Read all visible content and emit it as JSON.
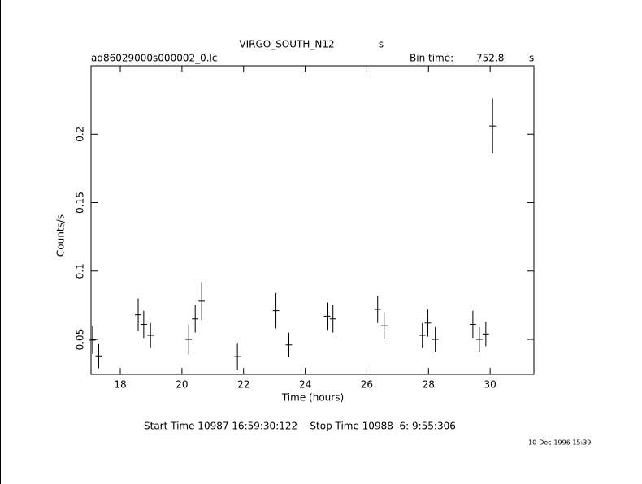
{
  "chart_data": {
    "type": "errorbar",
    "title": "VIRGO_SOUTH_N12",
    "title_unit": "s",
    "file": "ad86029000s000002_0.lc",
    "bin_time_label": "Bin time:",
    "bin_time": 752.8,
    "bin_time_unit": "s",
    "xlabel": "Time (hours)",
    "ylabel": "Counts/s",
    "footer": "Start Time 10987 16:59:30:122    Stop Time 10988  6: 9:55:306",
    "date": "10-Dec-1996 15:39",
    "color": "#000000",
    "x": [
      17.1,
      17.3,
      18.58,
      18.76,
      18.98,
      20.22,
      20.43,
      20.64,
      21.8,
      23.05,
      23.47,
      24.71,
      24.9,
      26.35,
      26.56,
      27.8,
      27.98,
      28.22,
      29.44,
      29.65,
      29.86,
      30.08
    ],
    "y": [
      0.0495,
      0.038,
      0.068,
      0.061,
      0.053,
      0.05,
      0.065,
      0.078,
      0.0375,
      0.071,
      0.046,
      0.067,
      0.065,
      0.072,
      0.06,
      0.053,
      0.062,
      0.05,
      0.061,
      0.05,
      0.054,
      0.206
    ],
    "yerr": [
      0.01,
      0.009,
      0.012,
      0.01,
      0.009,
      0.011,
      0.01,
      0.014,
      0.01,
      0.013,
      0.009,
      0.01,
      0.01,
      0.01,
      0.01,
      0.009,
      0.01,
      0.009,
      0.01,
      0.009,
      0.009,
      0.02
    ],
    "xerr": 0.1045,
    "xlim": [
      17.05,
      31.42
    ],
    "ylim": [
      0.0245,
      0.25
    ],
    "xticks": [
      18,
      20,
      22,
      24,
      26,
      28,
      30
    ],
    "yticks": [
      0.05,
      0.1,
      0.15,
      0.2
    ]
  }
}
